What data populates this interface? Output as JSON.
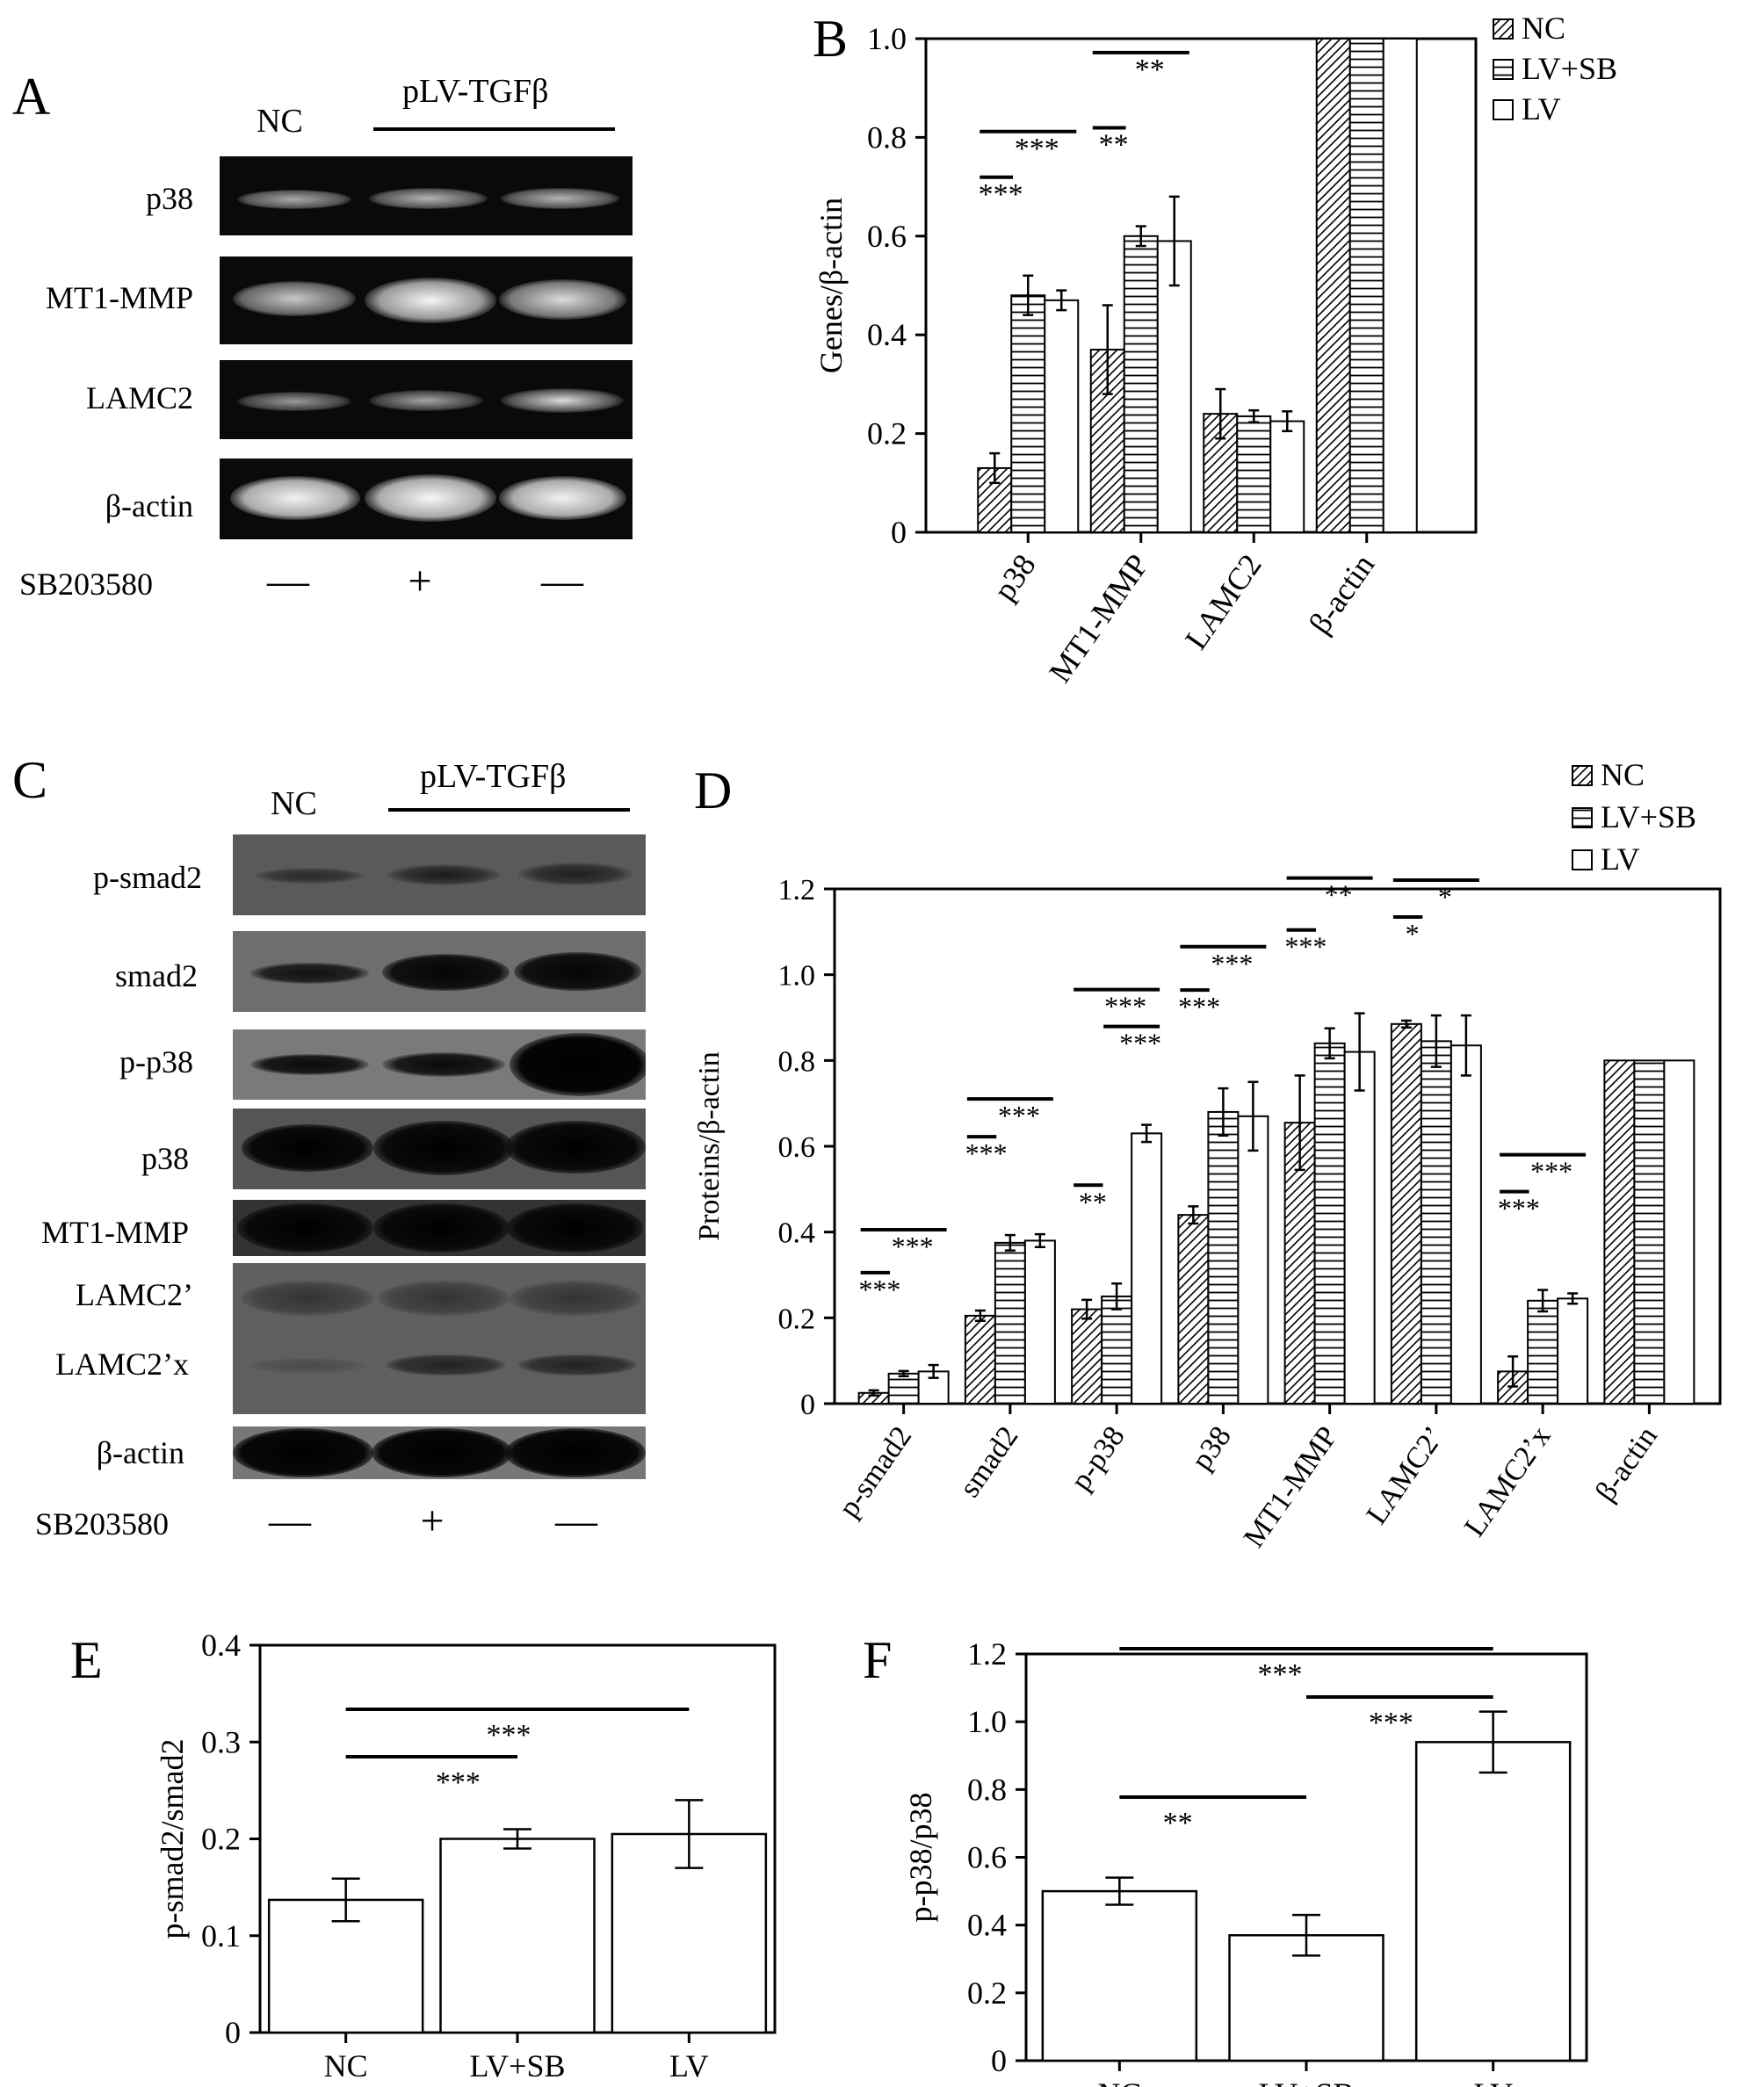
{
  "panels": {
    "A": {
      "label": "A",
      "group_nc": "NC",
      "group_tgf": "pLV-TGFβ",
      "rows": [
        "p38",
        "MT1-MMP",
        "LAMC2",
        "β-actin"
      ],
      "treatment_label": "SB203580",
      "treatment_signs": [
        "—",
        "+",
        "—"
      ]
    },
    "C": {
      "label": "C",
      "group_nc": "NC",
      "group_tgf": "pLV-TGFβ",
      "rows": [
        "p-smad2",
        "smad2",
        "p-p38",
        "p38",
        "MT1-MMP",
        "LAMC2’",
        "LAMC2’x",
        "β-actin"
      ],
      "treatment_label": "SB203580",
      "treatment_signs": [
        "—",
        "+",
        "—"
      ]
    }
  },
  "chart_data": [
    {
      "panel": "B",
      "type": "bar",
      "categories": [
        "p38",
        "MT1-MMP",
        "LAMC2",
        "β-actin"
      ],
      "series": [
        {
          "name": "NC",
          "values": [
            0.13,
            0.37,
            0.24,
            1.0
          ],
          "errors": [
            0.03,
            0.09,
            0.05,
            0.0
          ]
        },
        {
          "name": "LV+SB",
          "values": [
            0.48,
            0.6,
            0.235,
            1.0
          ],
          "errors": [
            0.04,
            0.02,
            0.012,
            0.0
          ]
        },
        {
          "name": "LV",
          "values": [
            0.47,
            0.59,
            0.225,
            1.0
          ],
          "errors": [
            0.02,
            0.09,
            0.02,
            0.0
          ]
        }
      ],
      "ylabel": "Genes/β-actin",
      "ylim": [
        0,
        1.0
      ],
      "yticks": [
        "0",
        "0.2",
        "0.4",
        "0.6",
        "0.8",
        "1.0"
      ],
      "legend_position": "top-right",
      "significance": [
        {
          "category": 0,
          "from": 0,
          "to": 1,
          "text": "***"
        },
        {
          "category": 0,
          "from": 0,
          "to": 2,
          "text": "***"
        },
        {
          "category": 1,
          "from": 0,
          "to": 1,
          "text": "**"
        },
        {
          "category": 1,
          "from": 0,
          "to": 2,
          "text": "**"
        }
      ]
    },
    {
      "panel": "D",
      "type": "bar",
      "categories": [
        "p-smad2",
        "smad2",
        "p-p38",
        "p38",
        "MT1-MMP",
        "LAMC2’",
        "LAMC2’x",
        "β-actin"
      ],
      "series": [
        {
          "name": "NC",
          "values": [
            0.025,
            0.205,
            0.22,
            0.44,
            0.655,
            0.885,
            0.075,
            0.8
          ],
          "errors": [
            0.006,
            0.012,
            0.022,
            0.02,
            0.11,
            0.008,
            0.035,
            0.0
          ]
        },
        {
          "name": "LV+SB",
          "values": [
            0.07,
            0.375,
            0.25,
            0.68,
            0.84,
            0.845,
            0.24,
            0.8
          ],
          "errors": [
            0.006,
            0.018,
            0.03,
            0.055,
            0.035,
            0.06,
            0.025,
            0.0
          ]
        },
        {
          "name": "LV",
          "values": [
            0.075,
            0.38,
            0.63,
            0.67,
            0.82,
            0.835,
            0.245,
            0.8
          ],
          "errors": [
            0.015,
            0.015,
            0.02,
            0.08,
            0.09,
            0.07,
            0.012,
            0.0
          ]
        }
      ],
      "ylabel": "Proteins/β-actin",
      "ylim": [
        0,
        1.2
      ],
      "yticks": [
        "0",
        "0.2",
        "0.4",
        "0.6",
        "0.8",
        "1.0",
        "1.2"
      ],
      "legend_position": "top-right",
      "significance": [
        {
          "category": 0,
          "from": 0,
          "to": 1,
          "text": "***"
        },
        {
          "category": 0,
          "from": 0,
          "to": 2,
          "text": "***"
        },
        {
          "category": 1,
          "from": 0,
          "to": 1,
          "text": "***"
        },
        {
          "category": 1,
          "from": 0,
          "to": 2,
          "text": "***"
        },
        {
          "category": 2,
          "from": 0,
          "to": 1,
          "text": "**"
        },
        {
          "category": 2,
          "from": 1,
          "to": 2,
          "text": "***"
        },
        {
          "category": 2,
          "from": 0,
          "to": 2,
          "text": "***"
        },
        {
          "category": 3,
          "from": 0,
          "to": 1,
          "text": "***"
        },
        {
          "category": 3,
          "from": 0,
          "to": 2,
          "text": "***"
        },
        {
          "category": 4,
          "from": 0,
          "to": 1,
          "text": "***"
        },
        {
          "category": 4,
          "from": 0,
          "to": 2,
          "text": "**"
        },
        {
          "category": 5,
          "from": 0,
          "to": 1,
          "text": "*"
        },
        {
          "category": 5,
          "from": 0,
          "to": 2,
          "text": "*"
        },
        {
          "category": 6,
          "from": 0,
          "to": 1,
          "text": "***"
        },
        {
          "category": 6,
          "from": 0,
          "to": 2,
          "text": "***"
        }
      ]
    },
    {
      "panel": "E",
      "type": "bar",
      "categories": [
        "NC",
        "LV+SB",
        "LV"
      ],
      "values": [
        0.137,
        0.2,
        0.205
      ],
      "errors": [
        0.022,
        0.01,
        0.035
      ],
      "ylabel": "p-smad2/smad2",
      "ylim": [
        0,
        0.4
      ],
      "yticks": [
        "0",
        "0.1",
        "0.2",
        "0.3",
        "0.4"
      ],
      "significance": [
        {
          "from": 0,
          "to": 1,
          "text": "***"
        },
        {
          "from": 0,
          "to": 2,
          "text": "***"
        }
      ]
    },
    {
      "panel": "F",
      "type": "bar",
      "categories": [
        "NC",
        "LV+SB",
        "LV"
      ],
      "values": [
        0.5,
        0.37,
        0.94
      ],
      "errors": [
        0.04,
        0.06,
        0.09
      ],
      "ylabel": "p-p38/p38",
      "ylim": [
        0,
        1.2
      ],
      "yticks": [
        "0",
        "0.2",
        "0.4",
        "0.6",
        "0.8",
        "1.0",
        "1.2"
      ],
      "significance": [
        {
          "from": 0,
          "to": 1,
          "text": "**"
        },
        {
          "from": 1,
          "to": 2,
          "text": "***"
        },
        {
          "from": 0,
          "to": 2,
          "text": "***"
        }
      ]
    }
  ]
}
